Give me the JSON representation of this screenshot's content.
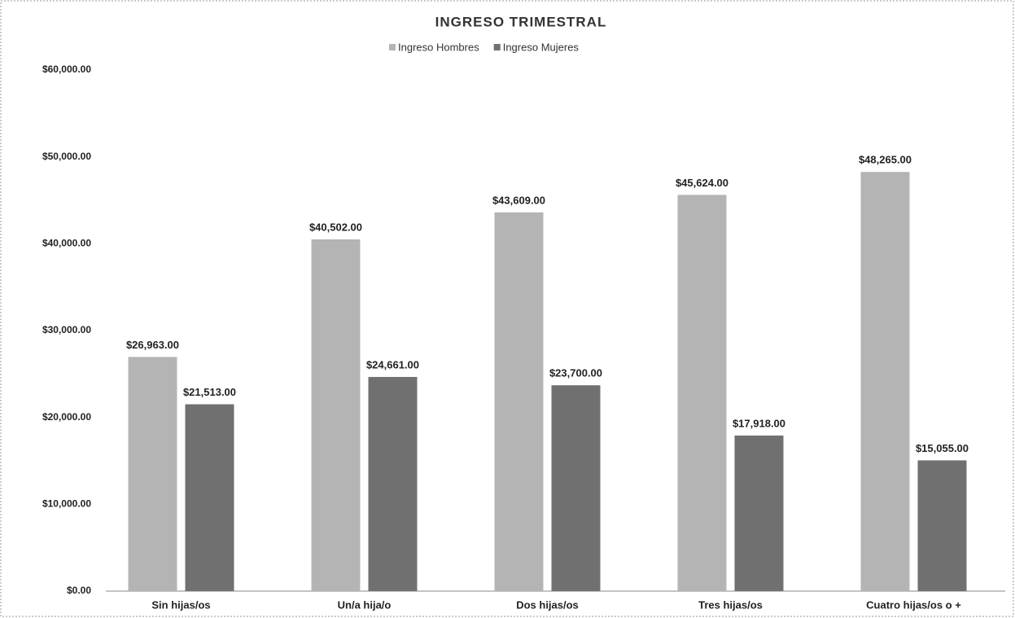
{
  "chart_data": {
    "type": "bar",
    "title": "INGRESO TRIMESTRAL",
    "categories": [
      "Sin hijas/os",
      "Un/a hija/o",
      "Dos hijas/os",
      "Tres hijas/os",
      "Cuatro hijas/os o +"
    ],
    "series": [
      {
        "name": "Ingreso Hombres",
        "color": "#b4b4b4",
        "values": [
          26963,
          40502,
          43609,
          45624,
          48265
        ],
        "value_labels": [
          "$26,963.00",
          "$40,502.00",
          "$43,609.00",
          "$45,624.00",
          "$48,265.00"
        ]
      },
      {
        "name": "Ingreso Mujeres",
        "color": "#707070",
        "values": [
          21513,
          24661,
          23700,
          17918,
          15055
        ],
        "value_labels": [
          "$21,513.00",
          "$24,661.00",
          "$23,700.00",
          "$17,918.00",
          "$15,055.00"
        ]
      }
    ],
    "ylim": [
      0,
      60000
    ],
    "yticks": [
      {
        "value": 0,
        "label": "$0.00"
      },
      {
        "value": 10000,
        "label": "$10,000.00"
      },
      {
        "value": 20000,
        "label": "$20,000.00"
      },
      {
        "value": 30000,
        "label": "$30,000.00"
      },
      {
        "value": 40000,
        "label": "$40,000.00"
      },
      {
        "value": 50000,
        "label": "$50,000.00"
      },
      {
        "value": 60000,
        "label": "$60,000.00"
      }
    ],
    "legend": "top"
  }
}
